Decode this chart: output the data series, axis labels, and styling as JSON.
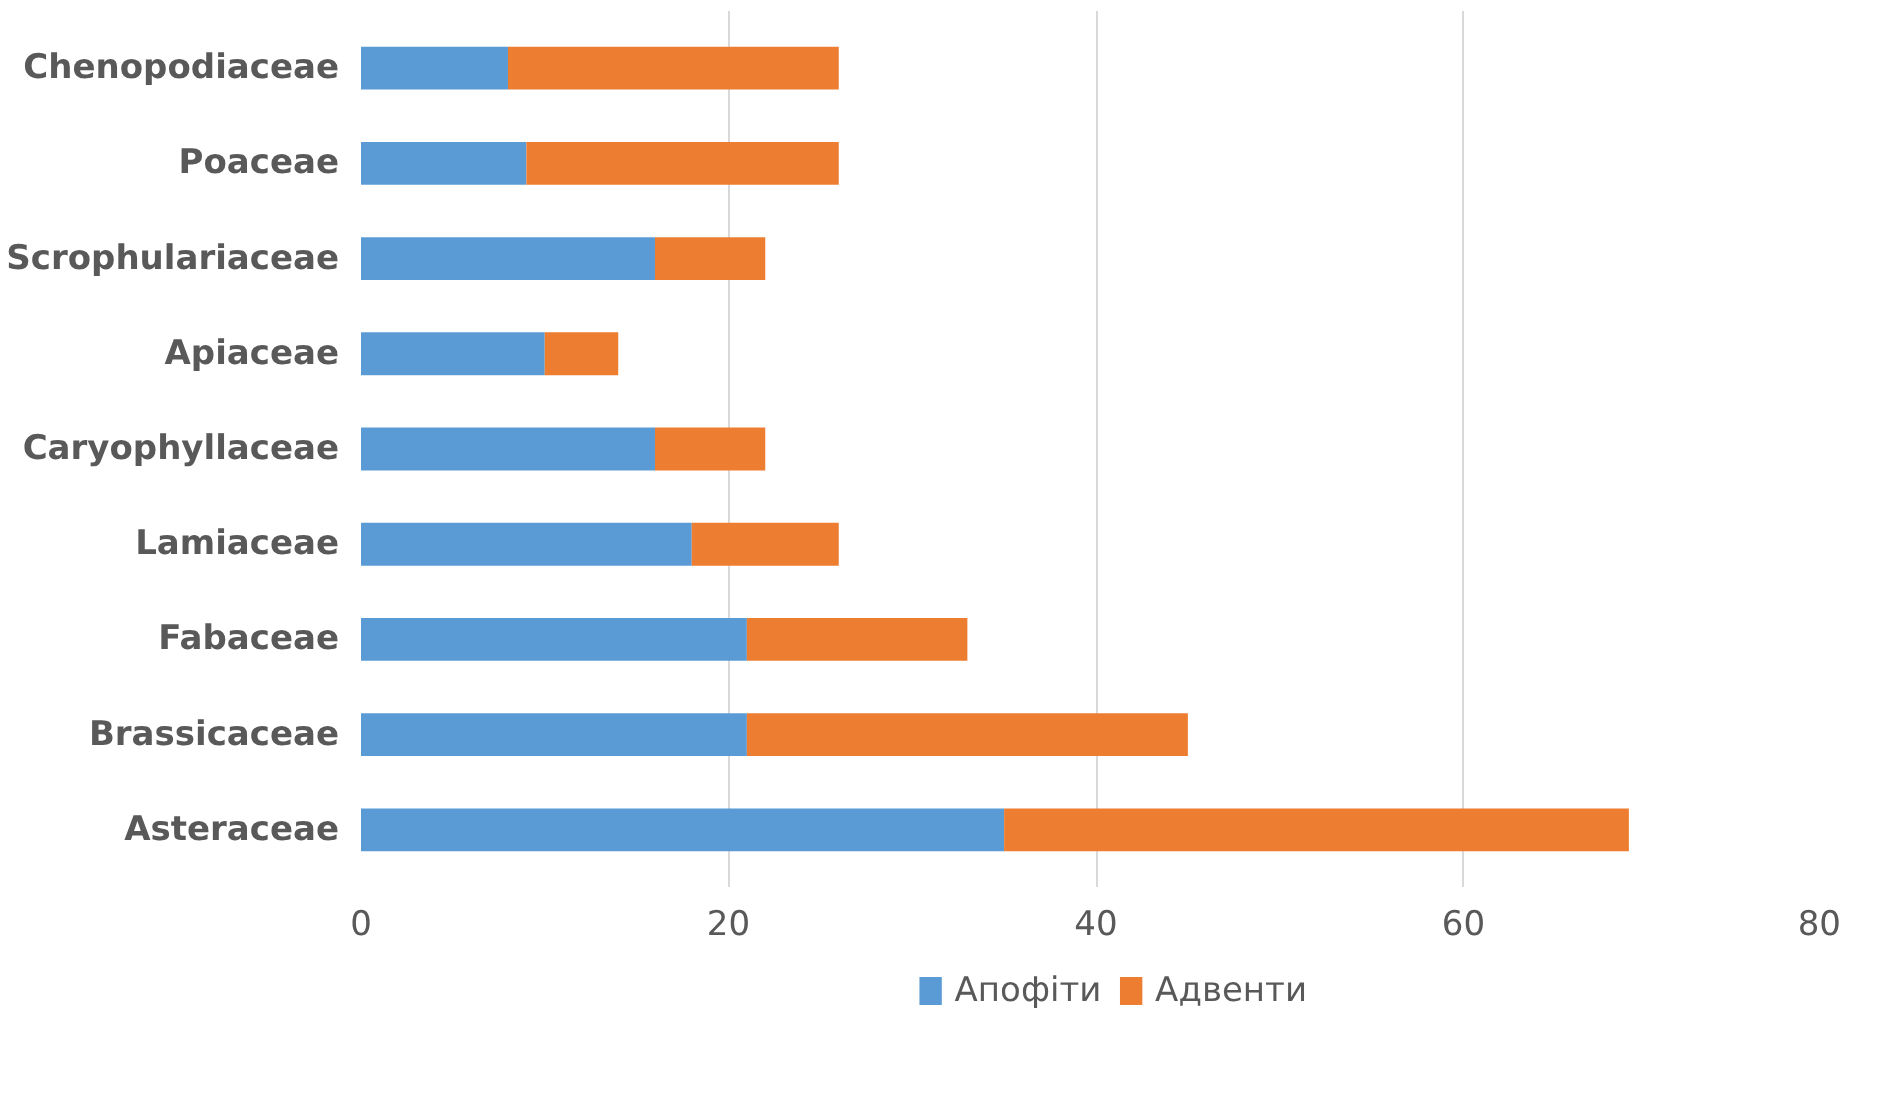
{
  "chart_data": {
    "type": "bar",
    "orientation": "horizontal",
    "stacked": true,
    "categories": [
      "Chenopodiaceae",
      "Poaceae",
      "Scrophulariaceae",
      "Apiaceae",
      "Caryophyllaceae",
      "Lamiaceae",
      "Fabaceae",
      "Brassicaceae",
      "Asteraceae"
    ],
    "series": [
      {
        "name": "Апофіти",
        "color": "#5b9bd5",
        "values": [
          8,
          9,
          16,
          10,
          16,
          18,
          21,
          21,
          35
        ]
      },
      {
        "name": "Адвенти",
        "color": "#ed7d31",
        "values": [
          18,
          17,
          6,
          4,
          6,
          8,
          12,
          24,
          34
        ]
      }
    ],
    "xlim": [
      0,
      80
    ],
    "xticks": [
      0,
      20,
      40,
      60,
      80
    ],
    "grid": "x",
    "legend": "bottom"
  }
}
